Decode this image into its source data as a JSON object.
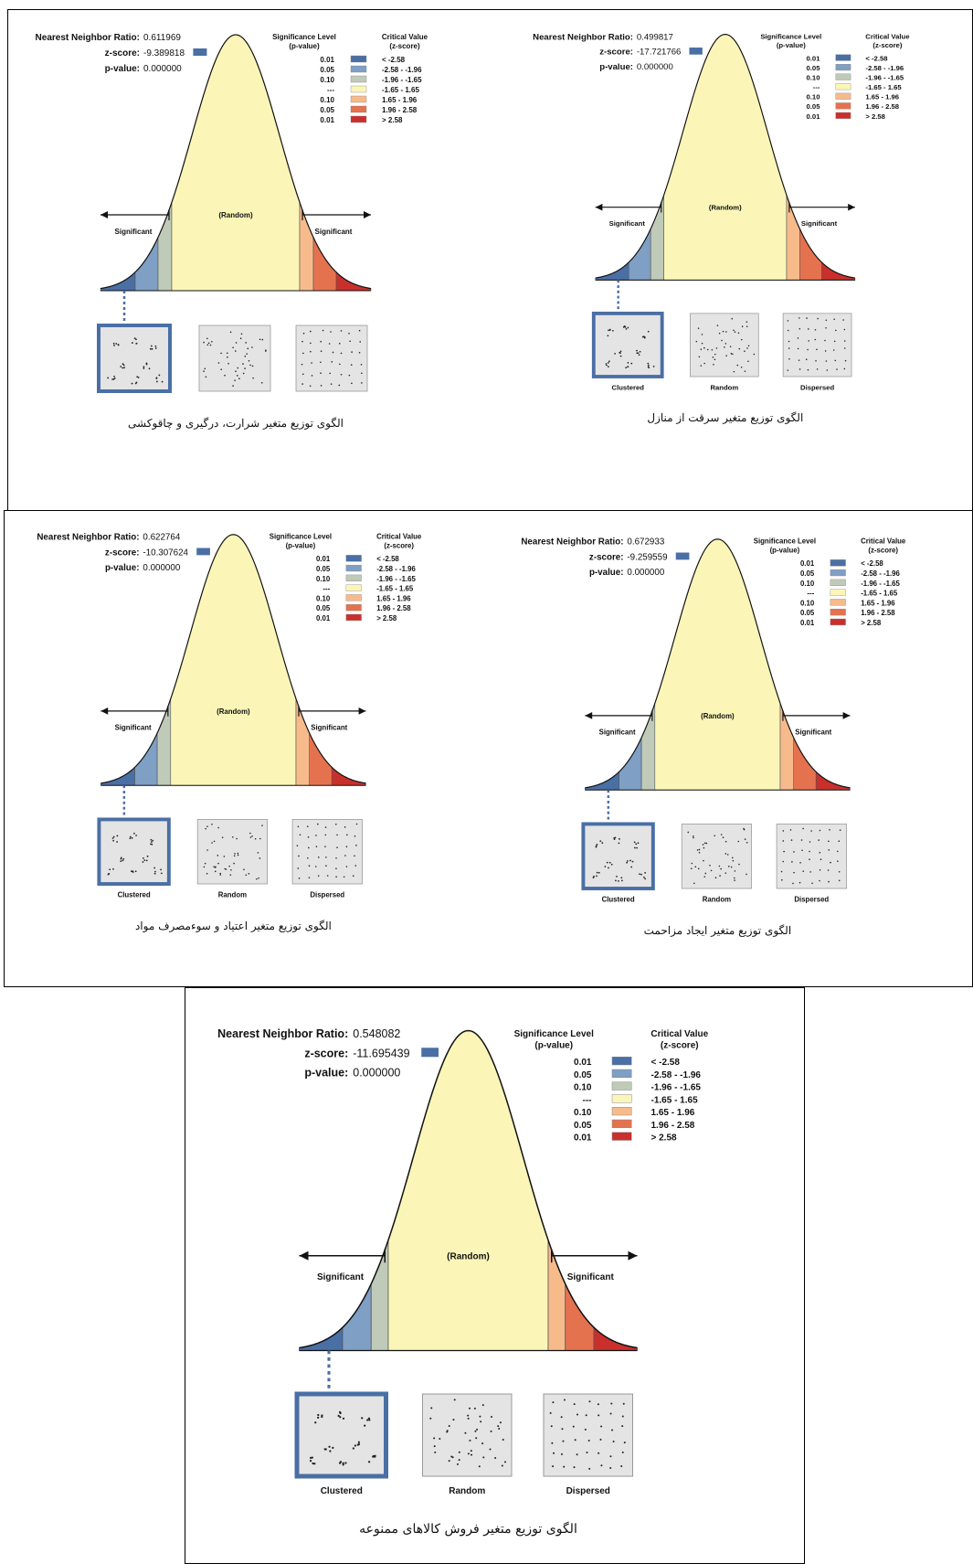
{
  "legend": {
    "sig_header": [
      "Significance Level",
      "(p-value)"
    ],
    "crit_header": [
      "Critical Value",
      "(z-score)"
    ],
    "rows": [
      {
        "p": "0.01",
        "z": "< -2.58",
        "color": "#4a6fa5"
      },
      {
        "p": "0.05",
        "z": "-2.58 - -1.96",
        "color": "#7f9fc4"
      },
      {
        "p": "0.10",
        "z": "-1.96 - -1.65",
        "color": "#bfcab8"
      },
      {
        "p": "---",
        "z": "-1.65 - 1.65",
        "color": "#fbf6b8"
      },
      {
        "p": "0.10",
        "z": "1.65 - 1.96",
        "color": "#f7bb8b"
      },
      {
        "p": "0.05",
        "z": "1.96 - 2.58",
        "color": "#e5724f"
      },
      {
        "p": "0.01",
        "z": "> 2.58",
        "color": "#c9302c"
      }
    ]
  },
  "labels": {
    "nnr": "Nearest Neighbor Ratio:",
    "z": "z-score:",
    "p": "p-value:",
    "random": "(Random)",
    "significant": "Significant",
    "clustered": "Clustered",
    "random_box": "Random",
    "dispersed": "Dispersed"
  },
  "colors": {
    "curve_fill": "#fbf8bd",
    "highlight_border": "#4a6fa5",
    "pattern_fill": "#e4e4e4"
  },
  "chart_data": [
    {
      "type": "bell-curve",
      "nearest_neighbor_ratio": "0.611969",
      "z_score": "-9.389818",
      "p_value": "0.000000",
      "pattern": "clustered",
      "show_pattern_labels": false,
      "caption": "الگوی توزیع متغیر شرارت، درگیری و چاقوکشی"
    },
    {
      "type": "bell-curve",
      "nearest_neighbor_ratio": "0.499817",
      "z_score": "-17.721766",
      "p_value": "0.000000",
      "pattern": "clustered",
      "show_pattern_labels": true,
      "caption": "الگوی توزیع متغیر سرقت از منازل"
    },
    {
      "type": "bell-curve",
      "nearest_neighbor_ratio": "0.622764",
      "z_score": "-10.307624",
      "p_value": "0.000000",
      "pattern": "clustered",
      "show_pattern_labels": true,
      "caption": "الگوی توزیع متغیر اعتیاد و سوءمصرف مواد"
    },
    {
      "type": "bell-curve",
      "nearest_neighbor_ratio": "0.672933",
      "z_score": "-9.259559",
      "p_value": "0.000000",
      "pattern": "clustered",
      "show_pattern_labels": true,
      "caption": "الگوی توزیع متغیر ایجاد مزاحمت"
    },
    {
      "type": "bell-curve",
      "nearest_neighbor_ratio": "0.548082",
      "z_score": "-11.695439",
      "p_value": "0.000000",
      "pattern": "clustered",
      "show_pattern_labels": true,
      "caption": "الگوی توزیع متغیر فروش کالاهای ممنوعه"
    }
  ]
}
